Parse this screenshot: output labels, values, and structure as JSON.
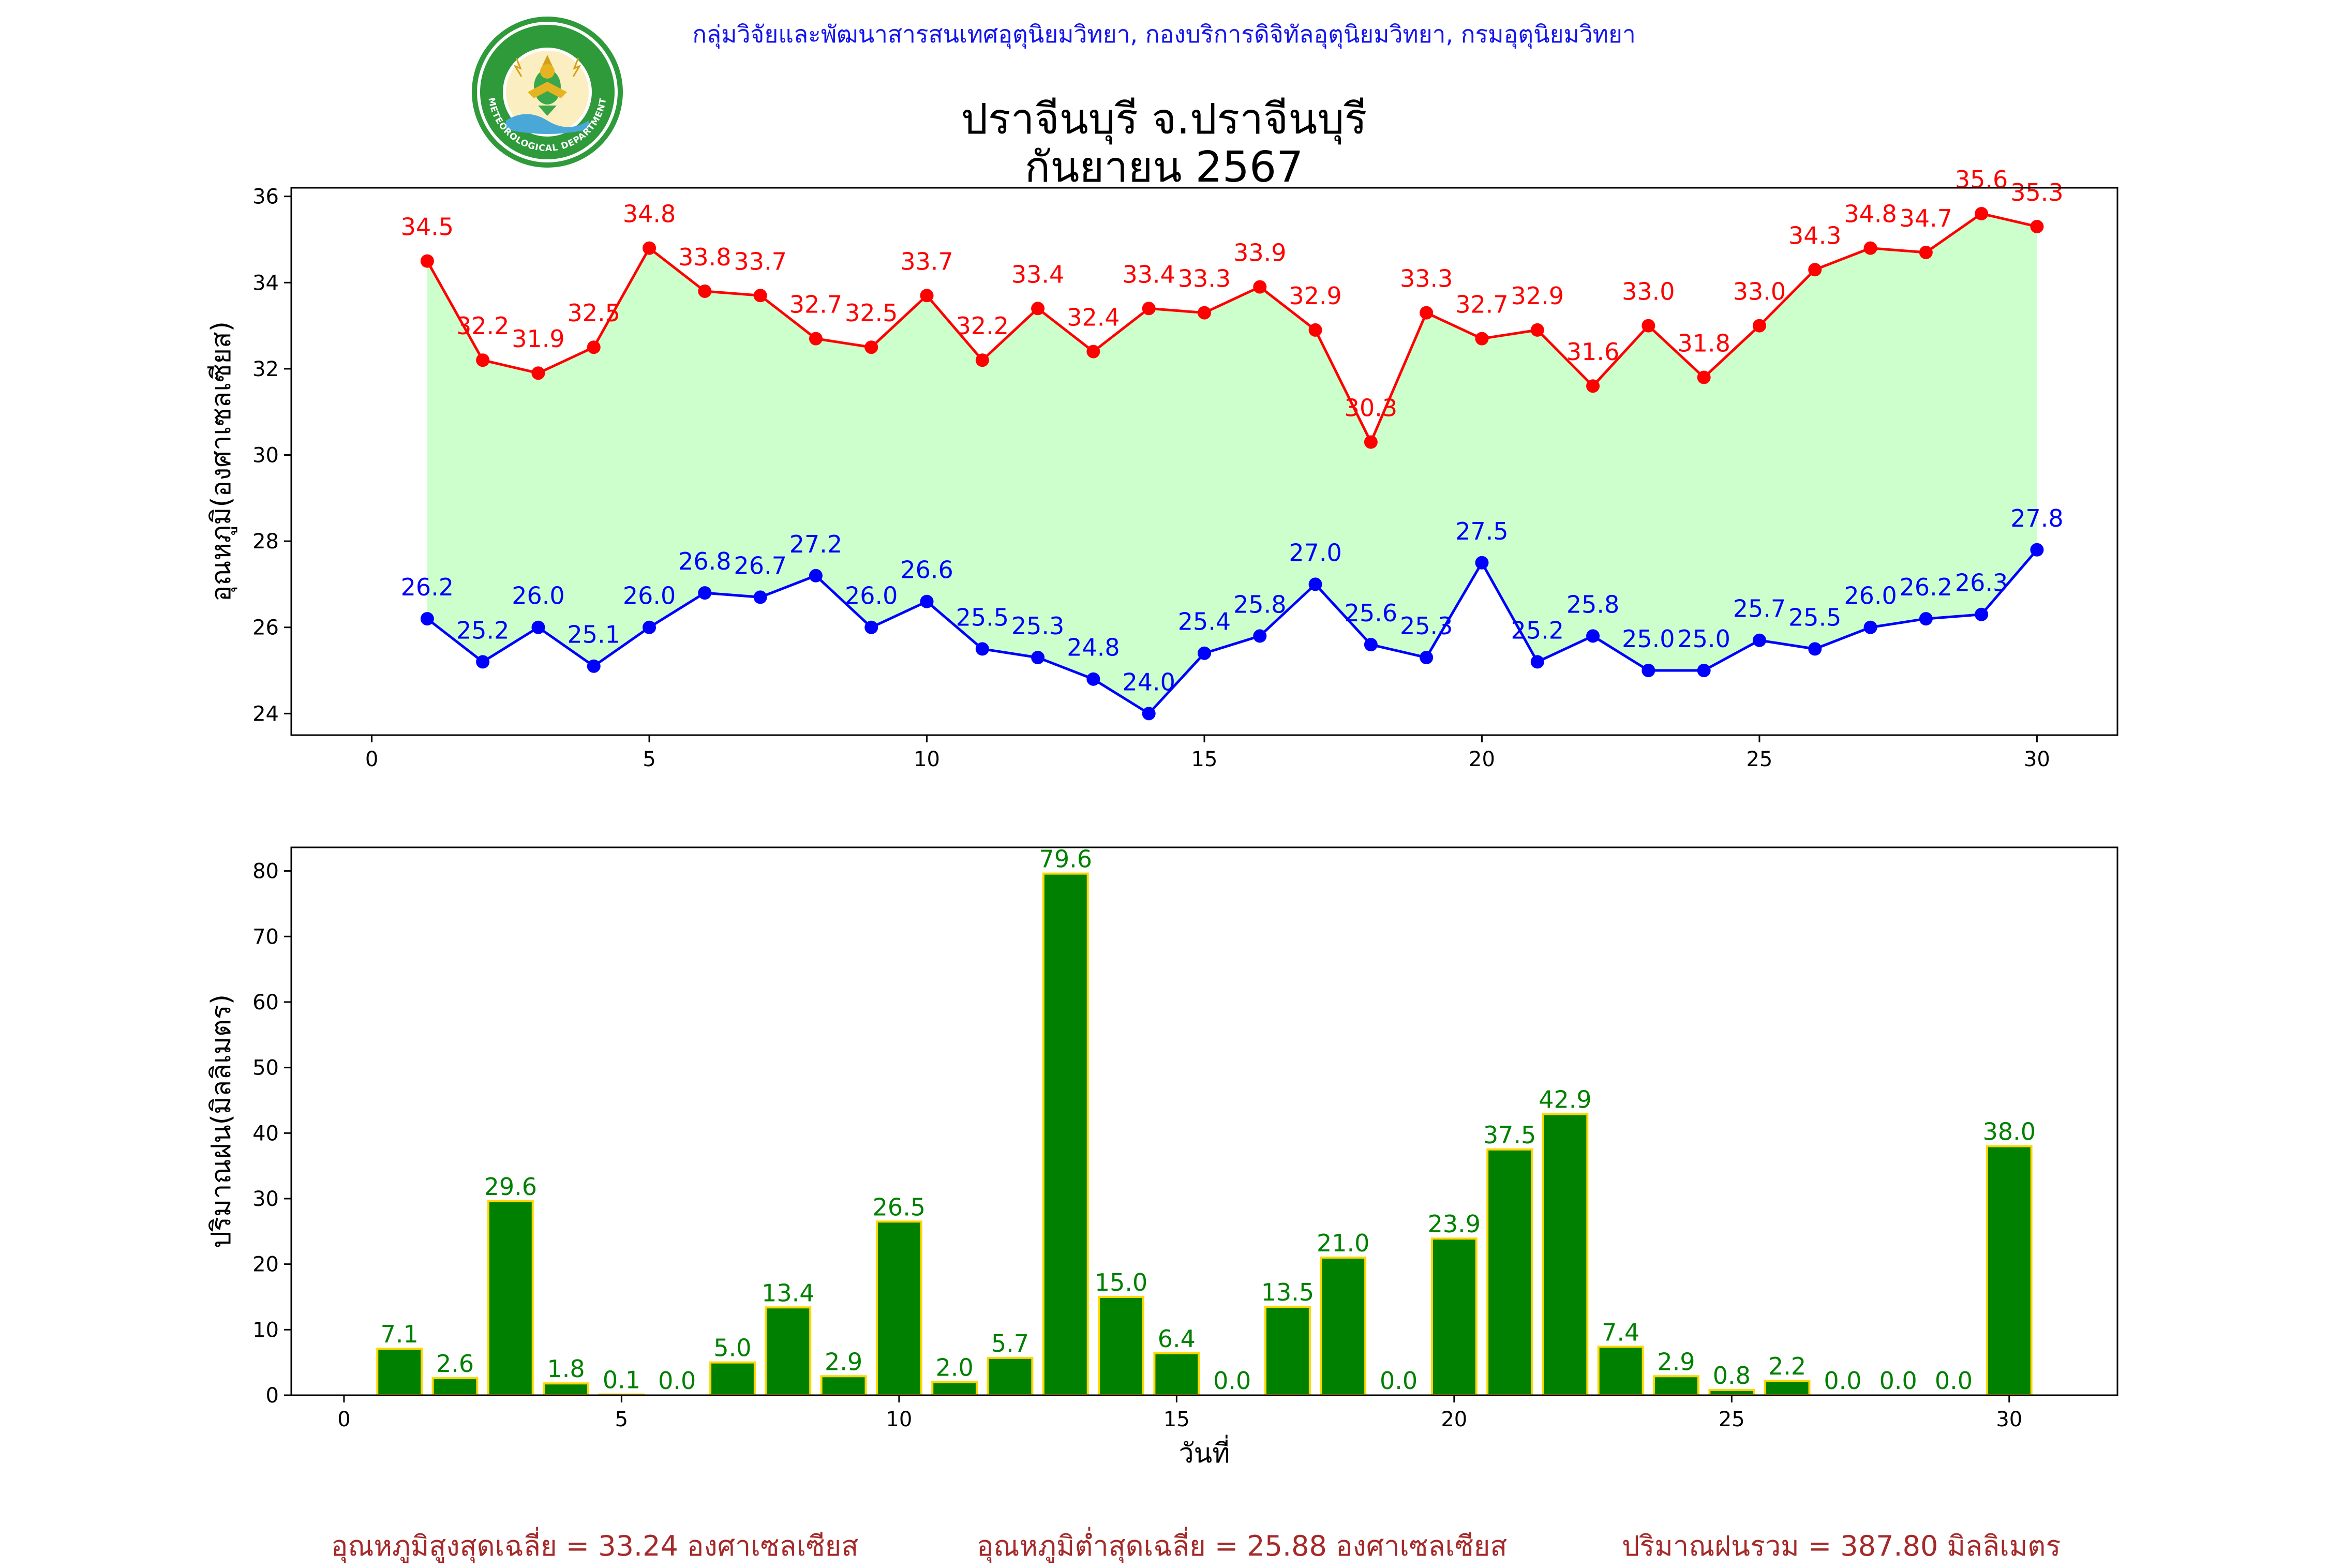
{
  "header": {
    "agency": "กลุ่มวิจัยและพัฒนาสารสนเทศอุตุนิยมวิทยา, กองบริการดิจิทัลอุตุนิยมวิทยา, กรมอุตุนิยมวิทยา",
    "station": "ปราจีนบุรี จ.ปราจีนบุรี",
    "period": "กันยายน 2567",
    "logo_top": "กรมอุตุนิยมวิทยา",
    "logo_bottom": "METEOROLOGICAL DEPARTMENT"
  },
  "colors": {
    "max": "#ff0000",
    "min": "#0000ff",
    "band": "#ccffcc",
    "bar": "#008000",
    "bar_edge": "#ffd700",
    "summary": "#a52a2a"
  },
  "chart_data": [
    {
      "type": "line",
      "ylabel": "อุณหภูมิ(องศาเซลเซียส)",
      "xlim": [
        -1.45,
        31.45
      ],
      "ylim": [
        23.5,
        36.2
      ],
      "xticks": [
        0,
        5,
        10,
        15,
        20,
        25,
        30
      ],
      "yticks": [
        24,
        26,
        28,
        30,
        32,
        34,
        36
      ],
      "x": [
        1,
        2,
        3,
        4,
        5,
        6,
        7,
        8,
        9,
        10,
        11,
        12,
        13,
        14,
        15,
        16,
        17,
        18,
        19,
        20,
        21,
        22,
        23,
        24,
        25,
        26,
        27,
        28,
        29,
        30
      ],
      "series": [
        {
          "key": "max",
          "values": [
            34.5,
            32.2,
            31.9,
            32.5,
            34.8,
            33.8,
            33.7,
            32.7,
            32.5,
            33.7,
            32.2,
            33.4,
            32.4,
            33.4,
            33.3,
            33.9,
            32.9,
            30.3,
            33.3,
            32.7,
            32.9,
            31.6,
            33.0,
            31.8,
            33.0,
            34.3,
            34.8,
            34.7,
            35.6,
            35.3
          ]
        },
        {
          "key": "min",
          "values": [
            26.2,
            25.2,
            26.0,
            25.1,
            26.0,
            26.8,
            26.7,
            27.2,
            26.0,
            26.6,
            25.5,
            25.3,
            24.8,
            24.0,
            25.4,
            25.8,
            27.0,
            25.6,
            25.3,
            27.5,
            25.2,
            25.8,
            25.0,
            25.0,
            25.7,
            25.5,
            26.0,
            26.2,
            26.3,
            27.8
          ]
        }
      ]
    },
    {
      "type": "bar",
      "xlabel": "วันที่",
      "ylabel": "ปริมาณฝน(มิลลิเมตร)",
      "xlim": [
        -0.95,
        31.95
      ],
      "ylim": [
        0,
        83.6
      ],
      "xticks": [
        0,
        5,
        10,
        15,
        20,
        25,
        30
      ],
      "yticks": [
        0,
        10,
        20,
        30,
        40,
        50,
        60,
        70,
        80
      ],
      "categories": [
        1,
        2,
        3,
        4,
        5,
        6,
        7,
        8,
        9,
        10,
        11,
        12,
        13,
        14,
        15,
        16,
        17,
        18,
        19,
        20,
        21,
        22,
        23,
        24,
        25,
        26,
        27,
        28,
        29,
        30
      ],
      "values": [
        7.1,
        2.6,
        29.6,
        1.8,
        0.1,
        0.0,
        5.0,
        13.4,
        2.9,
        26.5,
        2.0,
        5.7,
        79.6,
        15.0,
        6.4,
        0.0,
        13.5,
        21.0,
        0.0,
        23.9,
        37.5,
        42.9,
        7.4,
        2.9,
        0.8,
        2.2,
        0.0,
        0.0,
        0.0,
        38.0
      ]
    }
  ],
  "summary": {
    "avg_max": "อุณหภูมิสูงสุดเฉลี่ย = 33.24 องศาเซลเซียส",
    "avg_min": "อุณหภูมิต่ำสุดเฉลี่ย = 25.88 องศาเซลเซียส",
    "total_rain": "ปริมาณฝนรวม = 387.80 มิลลิเมตร"
  }
}
